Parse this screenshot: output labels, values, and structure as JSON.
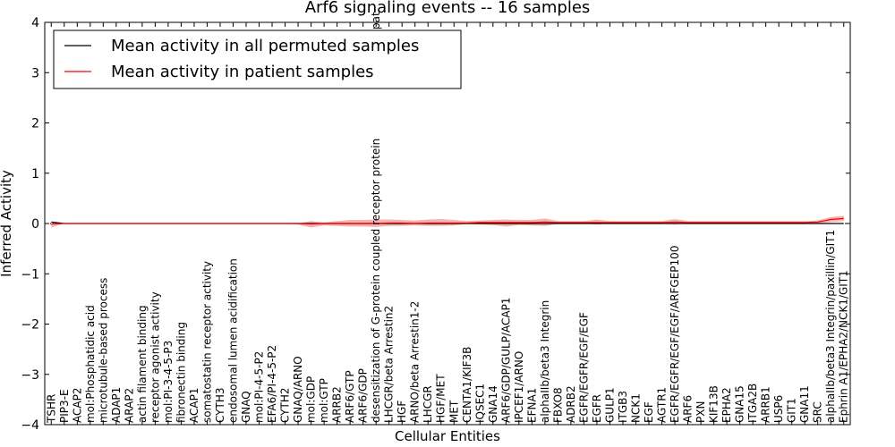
{
  "chart_data": {
    "type": "line",
    "title": "Arf6 signaling events -- 16 samples",
    "xlabel": "Cellular Entities",
    "ylabel": "Inferred Activity",
    "ylim": [
      -4,
      4
    ],
    "yticks": [
      -4,
      -3,
      -2,
      -1,
      0,
      1,
      2,
      3,
      4
    ],
    "ytick_labels": [
      "−4",
      "−3",
      "−2",
      "−1",
      "0",
      "1",
      "2",
      "3",
      "4"
    ],
    "grid": false,
    "legend_position": "top-left",
    "categories": [
      "TSHR",
      "PIP3-E",
      "ACAP2",
      "mol:Phosphatidic acid",
      "microtubule-based process",
      "ADAP1",
      "ARAP2",
      "actin filament binding",
      "receptor agonist activity",
      "mol:PI-3-4-5-P3",
      "fibronectin binding",
      "ACAP1",
      "somatostatin receptor activity",
      "CYTH3",
      "endosomal lumen acidification",
      "GNAQ",
      "mol:PI-4-5-P2",
      "EFA6/PI-4-5-P2",
      "CYTH2",
      "GNAQ/ARNO",
      "mol:GDP",
      "mol:GTP",
      "ARRB2",
      "ARF6/GTP",
      "ARF6/GDP",
      "desensitization of G-protein coupled receptor protein",
      "LHCGR/beta Arrestin2",
      "HGF",
      "ARNO/beta Arrestin1-2",
      "LHCGR",
      "HGF/MET",
      "MET",
      "CENTA1/KIF3B",
      "IQSEC1",
      "GNA14",
      "ARF6/GDP/GULP/ACAP1",
      "IPCEF1/ARNO",
      "EFNA1",
      "alphaIIb/beta3 Integrin",
      "FBXO8",
      "ADRB2",
      "EGFR/EGFR/EGF/EGF",
      "EGFR",
      "GULP1",
      "ITGB3",
      "NCK1",
      "EGF",
      "AGTR1",
      "EGFR/EGFR/EGF/EGF/ARFGEP100",
      "ARF6",
      "PXN",
      "KIF13B",
      "EPHA2",
      "GNA15",
      "ITGA2B",
      "ARRB1",
      "USP6",
      "GIT1",
      "GNA11",
      "SRC",
      "alphaIIb/beta3 Integrin/paxillin/GIT1",
      "Ephrin A1/EPHA2/NCK1/GIT1"
    ],
    "series": [
      {
        "name": "Mean activity in all permuted samples",
        "color": "#000000",
        "values": [
          0.03,
          0.0,
          0.0,
          0.0,
          0.0,
          0.0,
          0.0,
          0.0,
          0.0,
          0.0,
          0.0,
          0.0,
          0.0,
          0.0,
          0.0,
          0.0,
          0.0,
          0.0,
          0.0,
          0.0,
          0.0,
          0.0,
          0.0,
          0.0,
          0.0,
          0.0,
          0.0,
          0.0,
          0.0,
          0.0,
          0.0,
          0.0,
          0.0,
          0.0,
          0.0,
          0.0,
          0.0,
          0.0,
          0.0,
          0.0,
          0.0,
          0.0,
          0.0,
          0.0,
          0.0,
          0.0,
          0.0,
          0.0,
          0.0,
          0.0,
          0.0,
          0.0,
          0.0,
          0.0,
          0.0,
          0.0,
          0.0,
          0.0,
          0.0,
          0.0,
          0.0,
          0.0
        ]
      },
      {
        "name": "Mean activity in patient samples",
        "color": "#ff0000",
        "band_color": "#f08080",
        "values": [
          -0.01,
          0.0,
          0.0,
          0.0,
          0.0,
          0.0,
          0.0,
          0.0,
          0.0,
          0.0,
          0.0,
          0.0,
          0.0,
          0.0,
          0.0,
          0.0,
          0.0,
          0.0,
          0.0,
          0.0,
          -0.01,
          0.0,
          0.0,
          0.0,
          0.0,
          0.0,
          0.01,
          0.01,
          0.0,
          0.01,
          0.01,
          0.01,
          0.01,
          0.02,
          0.02,
          0.02,
          0.02,
          0.02,
          0.03,
          0.02,
          0.02,
          0.02,
          0.02,
          0.02,
          0.02,
          0.02,
          0.02,
          0.02,
          0.03,
          0.02,
          0.02,
          0.02,
          0.02,
          0.02,
          0.02,
          0.02,
          0.02,
          0.02,
          0.02,
          0.03,
          0.08,
          0.1
        ],
        "upper": [
          0.03,
          0.0,
          0.0,
          0.0,
          0.0,
          0.0,
          0.0,
          0.0,
          0.0,
          0.0,
          0.0,
          0.0,
          0.0,
          0.0,
          0.0,
          0.0,
          0.0,
          0.0,
          0.0,
          0.01,
          0.05,
          0.02,
          0.05,
          0.07,
          0.07,
          0.08,
          0.08,
          0.07,
          0.06,
          0.08,
          0.09,
          0.07,
          0.05,
          0.06,
          0.07,
          0.08,
          0.07,
          0.07,
          0.1,
          0.05,
          0.05,
          0.05,
          0.08,
          0.05,
          0.05,
          0.05,
          0.05,
          0.05,
          0.09,
          0.05,
          0.05,
          0.05,
          0.05,
          0.05,
          0.05,
          0.05,
          0.05,
          0.05,
          0.05,
          0.06,
          0.13,
          0.15
        ],
        "lower": [
          -0.08,
          0.0,
          0.0,
          0.0,
          0.0,
          0.0,
          0.0,
          0.0,
          0.0,
          0.0,
          0.0,
          0.0,
          0.0,
          0.0,
          0.0,
          0.0,
          0.0,
          0.0,
          0.0,
          -0.02,
          -0.08,
          -0.04,
          -0.05,
          -0.06,
          -0.06,
          -0.07,
          -0.05,
          -0.05,
          -0.04,
          -0.05,
          -0.05,
          -0.04,
          -0.01,
          -0.02,
          -0.03,
          -0.06,
          -0.03,
          -0.04,
          -0.05,
          -0.01,
          -0.01,
          0.0,
          -0.02,
          0.0,
          0.0,
          0.0,
          0.0,
          0.0,
          -0.02,
          0.0,
          0.0,
          0.0,
          0.0,
          0.0,
          0.0,
          0.0,
          0.0,
          0.0,
          0.0,
          0.0,
          0.03,
          0.05
        ]
      }
    ],
    "annotations": [
      {
        "text": "pat",
        "near_category": "desensitization of G-protein coupled receptor protein"
      }
    ]
  }
}
